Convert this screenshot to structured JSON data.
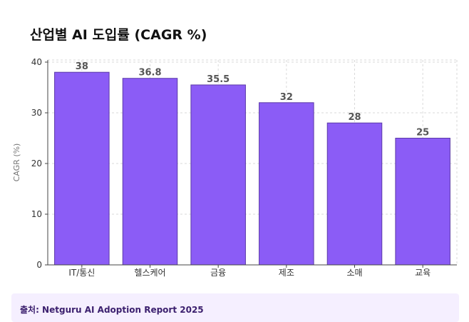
{
  "title": "산업별 AI 도입률 (CAGR %)",
  "source": "출처: Netguru AI Adoption Report 2025",
  "colors": {
    "bar": "#8b5cf6",
    "bar_stroke": "#5b3aa8",
    "grid": "#d9d9d9",
    "source_bg": "#f5efff"
  },
  "chart_data": {
    "type": "bar",
    "title": "산업별 AI 도입률 (CAGR %)",
    "xlabel": "",
    "ylabel": "CAGR (%)",
    "categories": [
      "IT/통신",
      "헬스케어",
      "금융",
      "제조",
      "소매",
      "교육"
    ],
    "values": [
      38,
      36.8,
      35.5,
      32,
      28,
      25
    ],
    "value_labels": [
      "38",
      "36.8",
      "35.5",
      "32",
      "28",
      "25"
    ],
    "ylim": [
      0,
      40
    ],
    "yticks": [
      0,
      10,
      20,
      30,
      40
    ],
    "grid": true,
    "legend": "none"
  }
}
